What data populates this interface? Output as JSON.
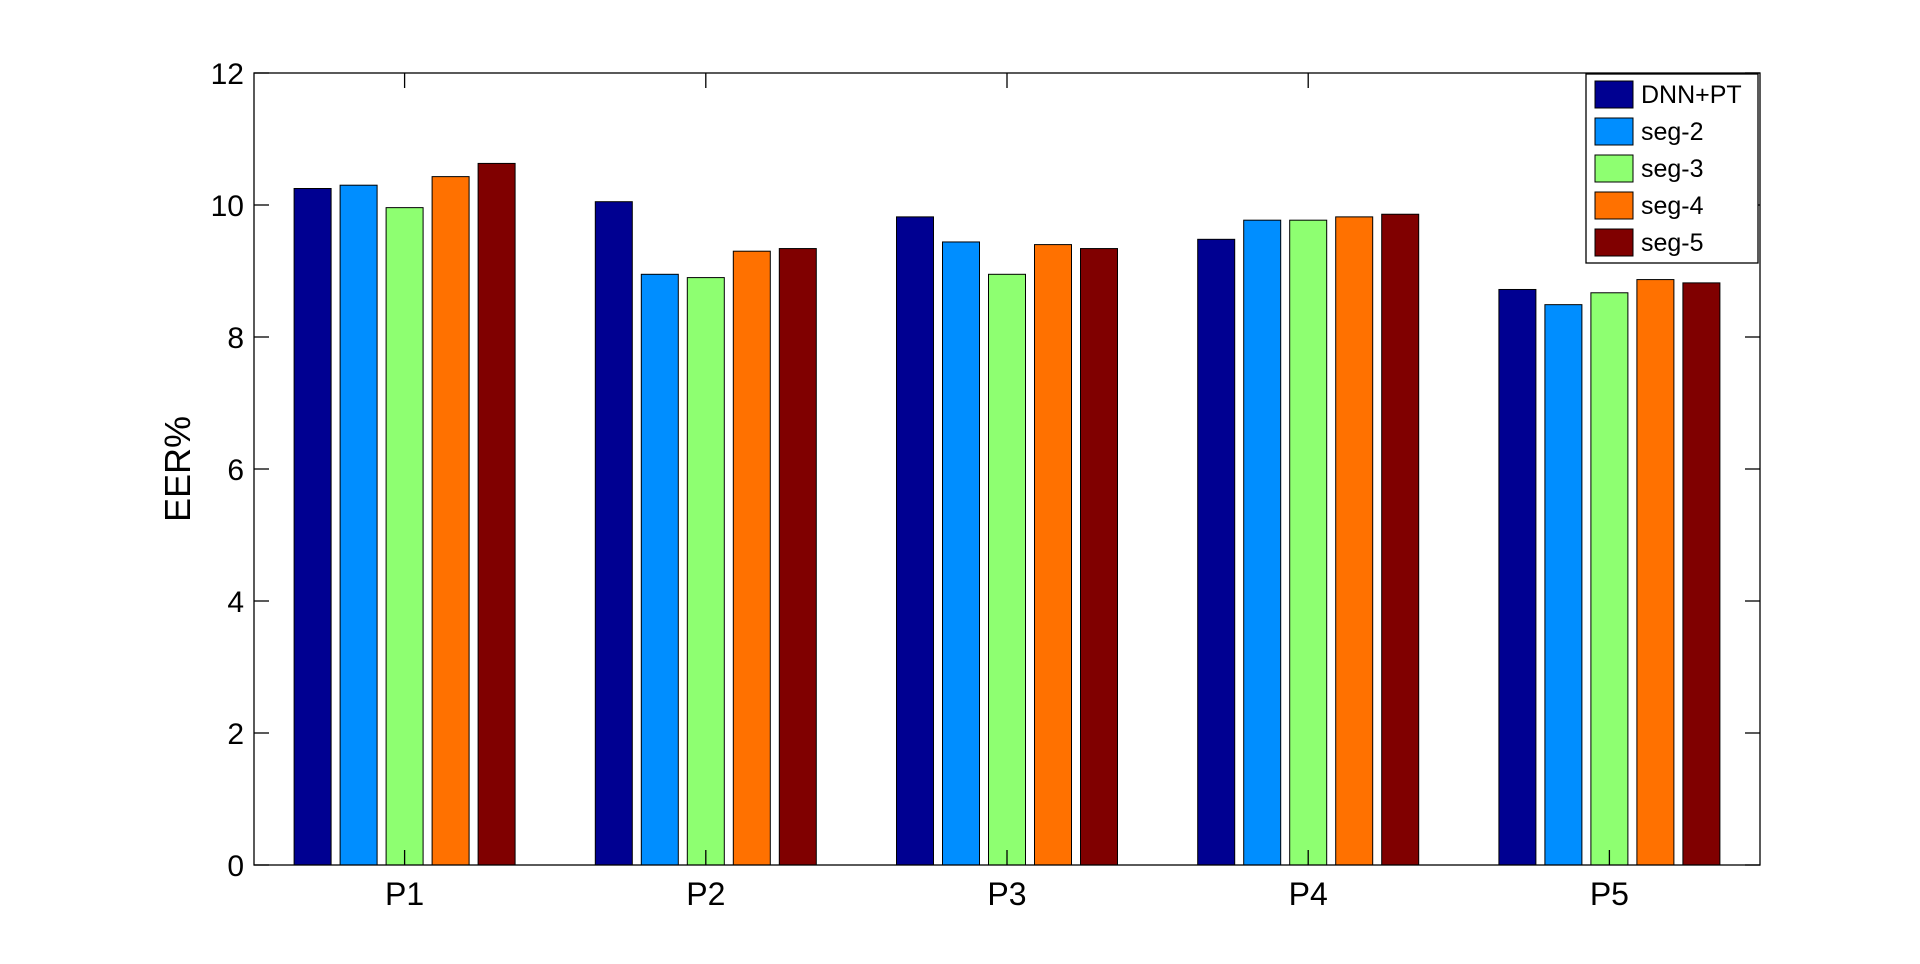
{
  "chart_data": {
    "type": "bar",
    "title": "",
    "xlabel": "",
    "ylabel": "EER%",
    "ylim": [
      0,
      12
    ],
    "yticks": [
      0,
      2,
      4,
      6,
      8,
      10,
      12
    ],
    "grid": false,
    "legend_position": "top-right",
    "categories": [
      "P1",
      "P2",
      "P3",
      "P4",
      "P5"
    ],
    "series": [
      {
        "name": "DNN+PT",
        "color": "#000091",
        "values": [
          10.25,
          10.05,
          9.82,
          9.48,
          8.72
        ]
      },
      {
        "name": "seg-2",
        "color": "#008eff",
        "values": [
          10.3,
          8.95,
          9.44,
          9.77,
          8.49
        ]
      },
      {
        "name": "seg-3",
        "color": "#8eff71",
        "values": [
          9.96,
          8.9,
          8.95,
          9.77,
          8.67
        ]
      },
      {
        "name": "seg-4",
        "color": "#ff7100",
        "values": [
          10.43,
          9.3,
          9.4,
          9.82,
          8.87
        ]
      },
      {
        "name": "seg-5",
        "color": "#800000",
        "values": [
          10.63,
          9.34,
          9.34,
          9.86,
          8.82
        ]
      }
    ]
  }
}
